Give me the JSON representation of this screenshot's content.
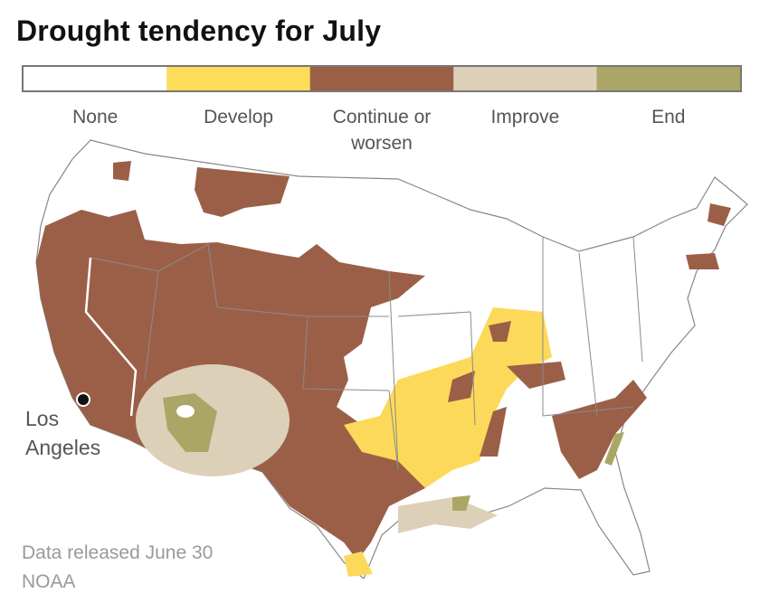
{
  "header": {
    "title": "Drought tendency for July"
  },
  "legend": {
    "items": [
      {
        "lines": [
          "None"
        ],
        "color": "#ffffff"
      },
      {
        "lines": [
          "Develop"
        ],
        "color": "#fddc5a"
      },
      {
        "lines": [
          "Continue or",
          "worsen"
        ],
        "color": "#9b5f47"
      },
      {
        "lines": [
          "Improve"
        ],
        "color": "#ddd0b9"
      },
      {
        "lines": [
          "End"
        ],
        "color": "#aaa766"
      }
    ]
  },
  "map": {
    "city": {
      "lines": [
        "Los",
        "Angeles"
      ]
    }
  },
  "source": {
    "lines": [
      "Data released June 30",
      "NOAA"
    ]
  }
}
